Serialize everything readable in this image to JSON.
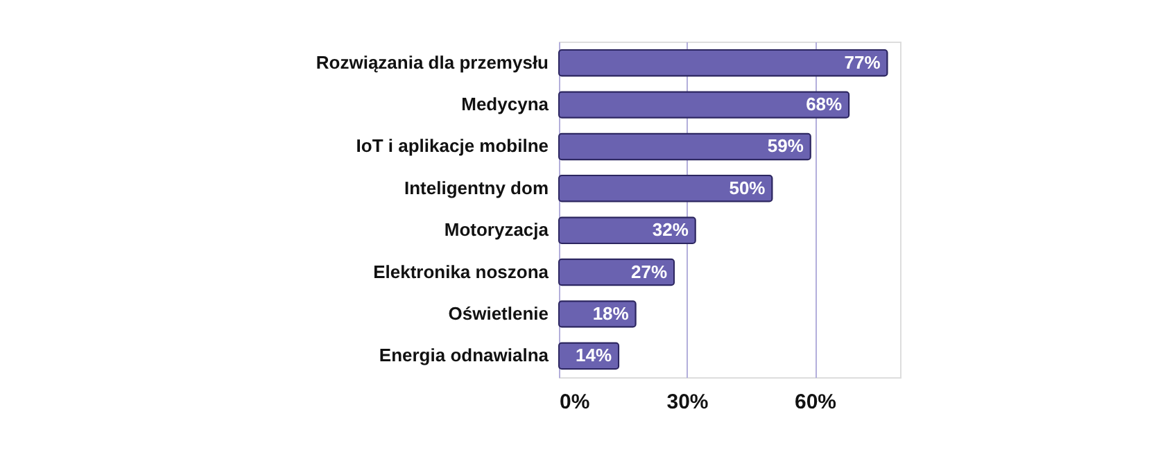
{
  "chart_data": {
    "type": "bar",
    "orientation": "horizontal",
    "categories": [
      "Rozwiązania dla przemysłu",
      "Medycyna",
      "IoT i aplikacje mobilne",
      "Inteligentny dom",
      "Motoryzacja",
      "Elektronika noszona",
      "Oświetlenie",
      "Energia odnawialna"
    ],
    "values": [
      77,
      68,
      59,
      50,
      32,
      27,
      18,
      14
    ],
    "color": "#6a62b0",
    "value_labels": [
      "77%",
      "68%",
      "59%",
      "50%",
      "32%",
      "27%",
      "18%",
      "14%"
    ],
    "xlim": [
      0,
      80
    ],
    "xticks": [
      {
        "value": 0,
        "label": "0%"
      },
      {
        "value": 30,
        "label": "30%"
      },
      {
        "value": 60,
        "label": "60%"
      }
    ],
    "grid": "x"
  }
}
